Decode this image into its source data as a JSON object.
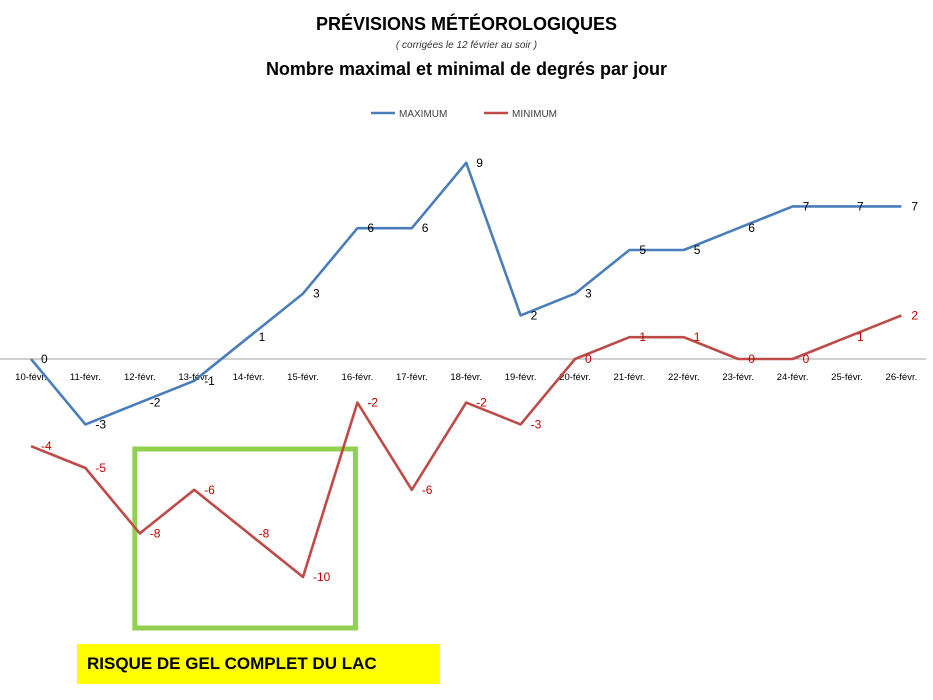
{
  "header": {
    "title": "PRÉVISIONS MÉTÉOROLOGIQUES",
    "note": "( corrigées le 12 février au soir )",
    "subtitle": "Nombre maximal et minimal de degrés par jour"
  },
  "chart_data": {
    "type": "line",
    "categories": [
      "10-févr.",
      "11-févr.",
      "12-févr.",
      "13-févr.",
      "14-févr.",
      "15-févr.",
      "16-févr.",
      "17-févr.",
      "18-févr.",
      "19-févr.",
      "20-févr.",
      "21-févr.",
      "22-févr.",
      "23-févr.",
      "24-févr.",
      "25-févr.",
      "26-févr."
    ],
    "series": [
      {
        "name": "MAXIMUM",
        "color": "#4a7ebb",
        "values": [
          0,
          -3,
          -2,
          -1,
          1,
          3,
          6,
          6,
          9,
          2,
          3,
          5,
          5,
          6,
          7,
          7,
          7
        ]
      },
      {
        "name": "MINIMUM",
        "color": "#be4b48",
        "values": [
          -4,
          -5,
          -8,
          -6,
          -8,
          -10,
          -2,
          -6,
          -2,
          -3,
          0,
          1,
          1,
          0,
          0,
          1,
          2
        ]
      }
    ],
    "data_label_colors": {
      "MAXIMUM": "#000000",
      "MINIMUM": "#c00000"
    },
    "legend_position": "top",
    "grid": false,
    "highlight": {
      "from": "12-févr.",
      "to": "16-févr.",
      "color": "#92d050"
    }
  },
  "annotation": {
    "text": "RISQUE DE GEL COMPLET DU LAC",
    "background": "#ffff00"
  }
}
